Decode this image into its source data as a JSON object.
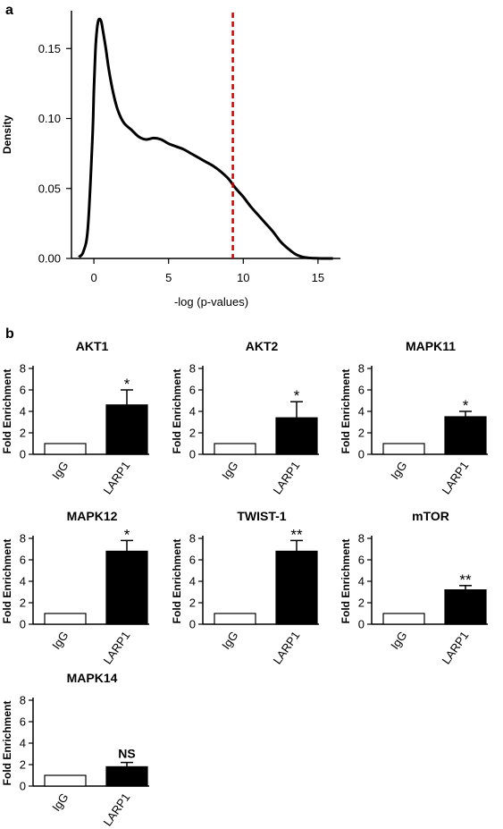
{
  "panel_labels": {
    "a": "a",
    "b": "b"
  },
  "chart_data": [
    {
      "panel": "a",
      "type": "line",
      "title": "",
      "xlabel": "-log (p-values)",
      "ylabel": "Density",
      "xlim": [
        -1.5,
        16.5
      ],
      "ylim": [
        0,
        0.177
      ],
      "xticks": [
        0,
        5,
        10,
        15
      ],
      "yticks": [
        0.0,
        0.05,
        0.1,
        0.15
      ],
      "ytick_labels": [
        "0.00",
        "0.05",
        "0.10",
        "0.15"
      ],
      "grid": false,
      "series": [
        {
          "color": "#000000",
          "x": [
            -1.0,
            -0.7,
            -0.4,
            -0.1,
            0.0,
            0.1,
            0.2,
            0.3,
            0.4,
            0.5,
            0.6,
            0.8,
            1.0,
            1.3,
            1.6,
            2.0,
            2.5,
            3.0,
            3.5,
            4.0,
            4.5,
            5.0,
            5.5,
            6.0,
            6.5,
            7.0,
            7.5,
            8.0,
            8.5,
            9.0,
            9.5,
            10.0,
            10.5,
            11.0,
            11.5,
            12.0,
            12.5,
            13.0,
            13.5,
            14.0,
            14.5,
            15.0,
            15.5,
            16.0
          ],
          "y": [
            0.001,
            0.005,
            0.022,
            0.085,
            0.12,
            0.148,
            0.163,
            0.17,
            0.171,
            0.169,
            0.163,
            0.15,
            0.135,
            0.118,
            0.106,
            0.097,
            0.092,
            0.087,
            0.085,
            0.086,
            0.085,
            0.082,
            0.08,
            0.078,
            0.075,
            0.072,
            0.069,
            0.066,
            0.062,
            0.057,
            0.05,
            0.044,
            0.037,
            0.031,
            0.025,
            0.019,
            0.012,
            0.007,
            0.003,
            0.001,
            0.0003,
            0.0001,
            0.0,
            0.0
          ]
        }
      ],
      "threshold": {
        "x": 9.3,
        "color": "#cc0000",
        "style": "dashed"
      }
    },
    {
      "panel": "b",
      "type": "bar",
      "title": "AKT1",
      "categories": [
        "IgG",
        "LARP1"
      ],
      "values": [
        1,
        4.6
      ],
      "errors": [
        0,
        1.4
      ],
      "significance": "*",
      "ylabel": "Fold Enrichment",
      "ylim": [
        0,
        8
      ],
      "yticks": [
        0,
        2,
        4,
        6,
        8
      ],
      "bar_colors": [
        "#ffffff",
        "#000000"
      ]
    },
    {
      "panel": "b",
      "type": "bar",
      "title": "AKT2",
      "categories": [
        "IgG",
        "LARP1"
      ],
      "values": [
        1,
        3.4
      ],
      "errors": [
        0,
        1.5
      ],
      "significance": "*",
      "ylabel": "Fold Enrichment",
      "ylim": [
        0,
        8
      ],
      "yticks": [
        0,
        2,
        4,
        6,
        8
      ],
      "bar_colors": [
        "#ffffff",
        "#000000"
      ]
    },
    {
      "panel": "b",
      "type": "bar",
      "title": "MAPK11",
      "categories": [
        "IgG",
        "LARP1"
      ],
      "values": [
        1,
        3.5
      ],
      "errors": [
        0,
        0.5
      ],
      "significance": "*",
      "ylabel": "Fold Enrichment",
      "ylim": [
        0,
        8
      ],
      "yticks": [
        0,
        2,
        4,
        6,
        8
      ],
      "bar_colors": [
        "#ffffff",
        "#000000"
      ]
    },
    {
      "panel": "b",
      "type": "bar",
      "title": "MAPK12",
      "categories": [
        "IgG",
        "LARP1"
      ],
      "values": [
        1,
        6.8
      ],
      "errors": [
        0,
        1.0
      ],
      "significance": "*",
      "ylabel": "Fold Enrichment",
      "ylim": [
        0,
        8
      ],
      "yticks": [
        0,
        2,
        4,
        6,
        8
      ],
      "bar_colors": [
        "#ffffff",
        "#000000"
      ]
    },
    {
      "panel": "b",
      "type": "bar",
      "title": "TWIST-1",
      "categories": [
        "IgG",
        "LARP1"
      ],
      "values": [
        1,
        6.8
      ],
      "errors": [
        0,
        1.0
      ],
      "significance": "**",
      "ylabel": "Fold Enrichment",
      "ylim": [
        0,
        8
      ],
      "yticks": [
        0,
        2,
        4,
        6,
        8
      ],
      "bar_colors": [
        "#ffffff",
        "#000000"
      ]
    },
    {
      "panel": "b",
      "type": "bar",
      "title": "mTOR",
      "categories": [
        "IgG",
        "LARP1"
      ],
      "values": [
        1,
        3.2
      ],
      "errors": [
        0,
        0.4
      ],
      "significance": "**",
      "ylabel": "Fold Enrichment",
      "ylim": [
        0,
        8
      ],
      "yticks": [
        0,
        2,
        4,
        6,
        8
      ],
      "bar_colors": [
        "#ffffff",
        "#000000"
      ]
    },
    {
      "panel": "b",
      "type": "bar",
      "title": "MAPK14",
      "categories": [
        "IgG",
        "LARP1"
      ],
      "values": [
        1,
        1.8
      ],
      "errors": [
        0,
        0.4
      ],
      "significance": "NS",
      "ylabel": "Fold Enrichment",
      "ylim": [
        0,
        8
      ],
      "yticks": [
        0,
        2,
        4,
        6,
        8
      ],
      "bar_colors": [
        "#ffffff",
        "#000000"
      ]
    }
  ]
}
